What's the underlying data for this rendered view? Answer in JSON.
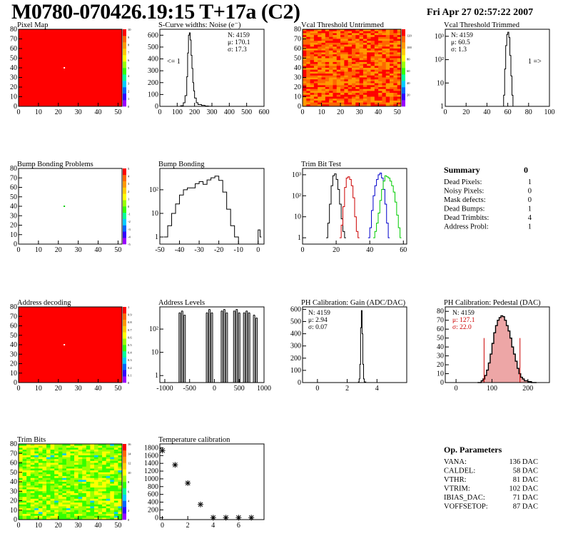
{
  "title": "M0780-070426.19:15 T+17a (C2)",
  "date": "Fri Apr 27 02:57:22 2007",
  "colors": {
    "frame": "#000000",
    "red_line": "#cc0000",
    "blue_line": "#0000cc",
    "green_line": "#00cc00",
    "pedestal_fill": "#cc0000",
    "heat_red": "#ff0000"
  },
  "palette": [
    "#9900ff",
    "#3300ff",
    "#0066ff",
    "#00ccff",
    "#00ff99",
    "#33ff00",
    "#99ff00",
    "#ffff00",
    "#ffcc00",
    "#ff9900",
    "#ff6600",
    "#ff0000"
  ],
  "chart_data": [
    {
      "type": "heatmap",
      "title": "Pixel Map",
      "xlim": [
        0,
        52
      ],
      "ylim": [
        0,
        80
      ],
      "xticks": [
        0,
        10,
        20,
        30,
        40,
        50
      ],
      "yticks": [
        0,
        10,
        20,
        30,
        40,
        50,
        60,
        70,
        80
      ],
      "zlim": [
        0,
        10
      ],
      "zticks": [
        0,
        1,
        2,
        3,
        4,
        5,
        6,
        7,
        8,
        9,
        10
      ],
      "fill": "uniform-max",
      "dead_pixel": [
        23,
        40
      ]
    },
    {
      "type": "line",
      "title": "S-Curve widths: Noise (e⁻)",
      "xlim": [
        0,
        600
      ],
      "ylim": [
        0,
        650
      ],
      "xticks": [
        0,
        100,
        200,
        300,
        400,
        500,
        600
      ],
      "yticks": [
        0,
        100,
        200,
        300,
        400,
        500,
        600
      ],
      "stats": [
        "N: 4159",
        "μ: 170.1",
        "σ: 17.3"
      ],
      "annotation": "<= 1",
      "x": [
        80,
        100,
        120,
        135,
        145,
        155,
        160,
        165,
        170,
        175,
        180,
        185,
        190,
        195,
        200,
        210,
        220,
        240,
        260,
        280,
        300
      ],
      "y": [
        0,
        0,
        5,
        30,
        90,
        250,
        450,
        600,
        620,
        560,
        430,
        320,
        200,
        130,
        70,
        30,
        15,
        8,
        3,
        1,
        0
      ]
    },
    {
      "type": "heatmap",
      "title": "Vcal Threshold Untrimmed",
      "xlim": [
        0,
        52
      ],
      "ylim": [
        0,
        80
      ],
      "xticks": [
        0,
        10,
        20,
        30,
        40,
        50
      ],
      "yticks": [
        0,
        10,
        20,
        30,
        40,
        50,
        60,
        70,
        80
      ],
      "zlim": [
        0,
        130
      ],
      "zticks": [
        20,
        40,
        60,
        80,
        100,
        120
      ],
      "fill": "noisy-orange"
    },
    {
      "type": "line",
      "title": "Vcal Threshold Trimmed",
      "log_y": true,
      "xlim": [
        0,
        100
      ],
      "ylim": [
        1,
        2000
      ],
      "xticks": [
        0,
        20,
        40,
        60,
        80,
        100
      ],
      "yticks": [
        1,
        10,
        100,
        1000
      ],
      "ytick_labels": [
        "1",
        "10",
        "10²",
        "10³"
      ],
      "stats": [
        "N: 4159",
        "μ: 60.5",
        "σ: 1.3"
      ],
      "annotation": "1 =>",
      "x": [
        55,
        56,
        57,
        58,
        59,
        60,
        61,
        62,
        63,
        64,
        65,
        66
      ],
      "y": [
        1,
        3,
        40,
        400,
        1200,
        1500,
        900,
        150,
        20,
        3,
        1,
        1
      ]
    },
    {
      "type": "heatmap",
      "title": "Bump Bonding Problems",
      "xlim": [
        0,
        52
      ],
      "ylim": [
        0,
        80
      ],
      "xticks": [
        0,
        10,
        20,
        30,
        40,
        50
      ],
      "yticks": [
        0,
        10,
        20,
        30,
        40,
        50,
        60,
        70,
        80
      ],
      "zlim": [
        -5,
        5
      ],
      "zticks": [
        -5,
        -4,
        -3,
        -2,
        -1,
        0,
        1,
        2,
        3,
        4,
        5
      ],
      "fill": "empty",
      "dead_pixel": [
        23,
        40
      ]
    },
    {
      "type": "line",
      "title": "Bump Bonding",
      "log_y": true,
      "xlim": [
        -50,
        3
      ],
      "ylim": [
        0.5,
        800
      ],
      "xticks": [
        -50,
        -40,
        -30,
        -20,
        -10,
        0
      ],
      "yticks": [
        1,
        10,
        100
      ],
      "ytick_labels": [
        "1",
        "10",
        "10²"
      ],
      "x": [
        -48,
        -46,
        -44,
        -42,
        -40,
        -38,
        -36,
        -34,
        -32,
        -30,
        -28,
        -26,
        -24,
        -22,
        -20,
        -18,
        -16,
        -14,
        -12,
        -10,
        0,
        1
      ],
      "y": [
        1,
        3,
        10,
        25,
        60,
        100,
        120,
        120,
        180,
        220,
        170,
        260,
        320,
        380,
        250,
        80,
        15,
        3,
        1,
        0,
        2,
        1
      ]
    },
    {
      "type": "line",
      "title": "Trim Bit Test",
      "log_y": true,
      "xlim": [
        0,
        62
      ],
      "ylim": [
        0.5,
        2000
      ],
      "xticks": [
        0,
        20,
        40,
        60
      ],
      "yticks": [
        1,
        10,
        100,
        1000
      ],
      "ytick_labels": [
        "1",
        "10",
        "10²",
        "10³"
      ],
      "series": [
        {
          "color": "#000000",
          "x": [
            14,
            15,
            16,
            17,
            18,
            19,
            20,
            21,
            22,
            23,
            24,
            25
          ],
          "y": [
            1,
            5,
            40,
            300,
            900,
            1100,
            600,
            200,
            40,
            8,
            2,
            1
          ]
        },
        {
          "color": "#cc0000",
          "x": [
            22,
            23,
            24,
            25,
            26,
            27,
            28,
            29,
            30,
            31,
            32,
            33
          ],
          "y": [
            1,
            4,
            30,
            250,
            700,
            800,
            600,
            300,
            80,
            10,
            2,
            1
          ]
        },
        {
          "color": "#0000cc",
          "x": [
            39,
            40,
            41,
            42,
            43,
            44,
            45,
            46,
            47,
            48,
            49,
            50,
            51
          ],
          "y": [
            1,
            3,
            20,
            100,
            300,
            600,
            1000,
            1200,
            700,
            200,
            40,
            5,
            1
          ]
        },
        {
          "color": "#00cc00",
          "x": [
            42,
            43,
            44,
            45,
            46,
            47,
            48,
            49,
            50,
            51,
            52,
            53,
            54,
            55,
            56,
            57,
            58
          ],
          "y": [
            1,
            2,
            5,
            15,
            60,
            200,
            500,
            900,
            800,
            700,
            500,
            300,
            150,
            50,
            12,
            3,
            1
          ]
        }
      ]
    },
    {
      "type": "table",
      "title": "Summary",
      "value": "0",
      "rows": [
        {
          "label": "Dead Pixels:",
          "value": "1"
        },
        {
          "label": "Noisy Pixels:",
          "value": "0"
        },
        {
          "label": "Mask defects:",
          "value": "0"
        },
        {
          "label": "Dead Bumps:",
          "value": "1"
        },
        {
          "label": "Dead Trimbits:",
          "value": "4"
        },
        {
          "label": "Address Probl:",
          "value": "1"
        }
      ]
    },
    {
      "type": "heatmap",
      "title": "Address decoding",
      "xlim": [
        0,
        52
      ],
      "ylim": [
        0,
        80
      ],
      "xticks": [
        0,
        10,
        20,
        30,
        40,
        50
      ],
      "yticks": [
        0,
        10,
        20,
        30,
        40,
        50,
        60,
        70,
        80
      ],
      "zlim": [
        0,
        1
      ],
      "zticks": [
        0,
        0.1,
        0.2,
        0.3,
        0.4,
        0.5,
        0.6,
        0.7,
        0.8,
        0.9,
        1
      ],
      "fill": "uniform-max",
      "dead_pixel": [
        23,
        40
      ]
    },
    {
      "type": "bar",
      "title": "Address Levels",
      "log_y": true,
      "xlim": [
        -1100,
        1000
      ],
      "ylim": [
        0.5,
        900
      ],
      "xticks": [
        -1000,
        -500,
        0,
        500,
        1000
      ],
      "yticks": [
        1,
        10,
        100
      ],
      "ytick_labels": [
        "1",
        "10",
        "10²"
      ],
      "x": [
        -700,
        -650,
        -600,
        -150,
        -100,
        -50,
        150,
        200,
        250,
        400,
        450,
        500,
        600,
        650,
        700,
        800,
        850
      ],
      "y": [
        500,
        600,
        400,
        500,
        700,
        500,
        600,
        700,
        500,
        600,
        700,
        500,
        500,
        600,
        500,
        400,
        300
      ]
    },
    {
      "type": "line",
      "title": "PH Calibration: Gain (ADC/DAC)",
      "xlim": [
        -1,
        6
      ],
      "ylim": [
        0,
        620
      ],
      "xticks": [
        0,
        2,
        4
      ],
      "yticks": [
        0,
        100,
        200,
        300,
        400,
        500,
        600
      ],
      "stats": [
        "N: 4159",
        "μ: 2.94",
        "σ: 0.07"
      ],
      "x": [
        2.65,
        2.75,
        2.8,
        2.85,
        2.9,
        2.95,
        3.0,
        3.05,
        3.1,
        3.15,
        3.25
      ],
      "y": [
        0,
        5,
        30,
        150,
        450,
        590,
        400,
        150,
        30,
        5,
        0
      ]
    },
    {
      "type": "area",
      "title": "PH Calibration: Pedestal (DAC)",
      "xlim": [
        -30,
        260
      ],
      "ylim": [
        0,
        85
      ],
      "xticks": [
        0,
        100,
        200
      ],
      "yticks": [
        0,
        10,
        20,
        30,
        40,
        50,
        60,
        70,
        80
      ],
      "stats": [
        "N: 4159",
        "μ: 127.1",
        "σ: 22.0"
      ],
      "fit_range": [
        78,
        178
      ],
      "x": [
        60,
        70,
        75,
        80,
        85,
        90,
        95,
        100,
        105,
        110,
        115,
        120,
        125,
        130,
        135,
        140,
        145,
        150,
        155,
        160,
        165,
        170,
        175,
        180,
        185,
        190,
        200,
        210,
        220
      ],
      "y": [
        0,
        2,
        4,
        8,
        14,
        22,
        32,
        44,
        56,
        64,
        70,
        73,
        75,
        74,
        70,
        64,
        58,
        50,
        40,
        32,
        24,
        16,
        10,
        6,
        4,
        2,
        1,
        0,
        0
      ]
    },
    {
      "type": "heatmap",
      "title": "Trim Bits",
      "xlim": [
        0,
        52
      ],
      "ylim": [
        0,
        80
      ],
      "xticks": [
        0,
        10,
        20,
        30,
        40,
        50
      ],
      "yticks": [
        0,
        10,
        20,
        30,
        40,
        50,
        60,
        70,
        80
      ],
      "zlim": [
        0,
        16
      ],
      "zticks": [
        0,
        2,
        4,
        6,
        8,
        10,
        12,
        14,
        16
      ],
      "fill": "noisy-green"
    },
    {
      "type": "scatter",
      "title": "Temperature calibration",
      "xlim": [
        -0.2,
        8
      ],
      "ylim": [
        -50,
        1900
      ],
      "xticks": [
        0,
        2,
        4,
        6
      ],
      "yticks": [
        0,
        200,
        400,
        600,
        800,
        1000,
        1200,
        1400,
        1600,
        1800
      ],
      "x": [
        0,
        1,
        2,
        3,
        4,
        5,
        6,
        7
      ],
      "y": [
        1730,
        1360,
        890,
        340,
        0,
        0,
        0,
        0
      ]
    },
    {
      "type": "table",
      "title": "Op. Parameters",
      "rows": [
        {
          "label": "VANA:",
          "value": "136 DAC"
        },
        {
          "label": "CALDEL:",
          "value": "58 DAC"
        },
        {
          "label": "VTHR:",
          "value": "81 DAC"
        },
        {
          "label": "VTRIM:",
          "value": "102 DAC"
        },
        {
          "label": "IBIAS_DAC:",
          "value": "71 DAC"
        },
        {
          "label": "VOFFSETOP:",
          "value": "87 DAC"
        }
      ]
    }
  ]
}
